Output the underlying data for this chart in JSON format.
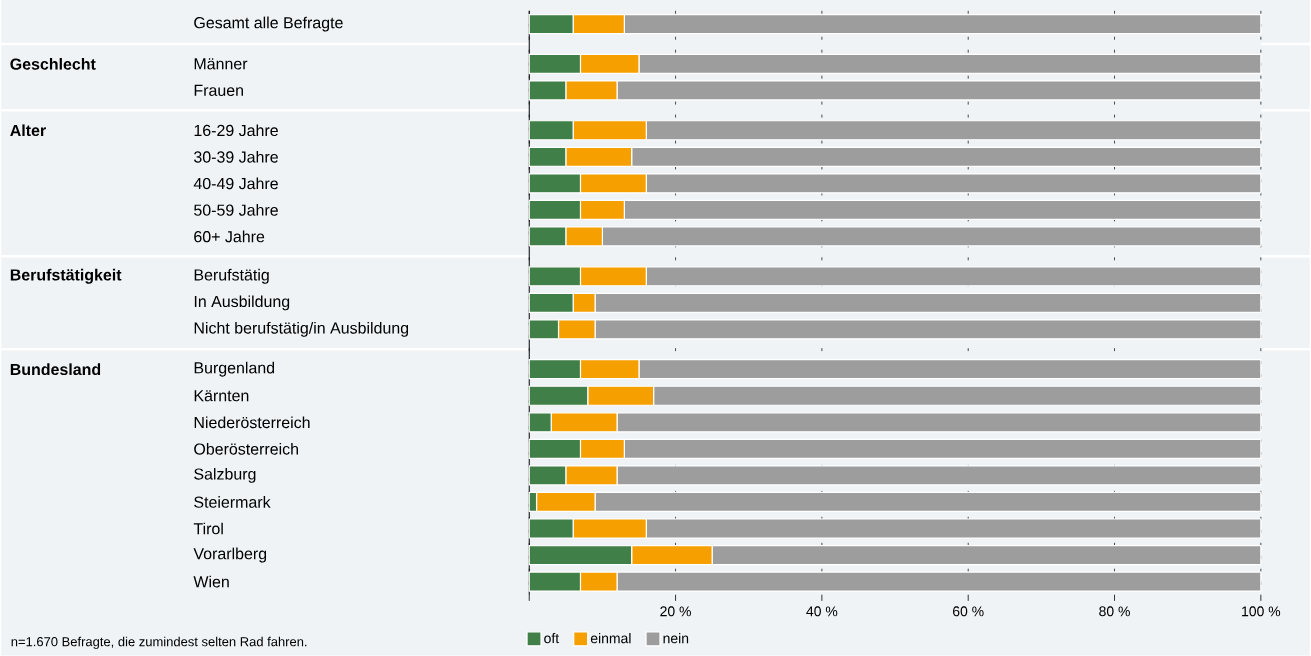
{
  "chart_data": {
    "type": "bar",
    "orientation": "horizontal",
    "stacked": true,
    "categories": [
      "Gesamt alle Befragte",
      "Männer",
      "Frauen",
      "16-29 Jahre",
      "30-39 Jahre",
      "40-49 Jahre",
      "50-59 Jahre",
      "60+ Jahre",
      "Berufstätig",
      "In Ausbildung",
      "Nicht berufstätig/in Ausbildung",
      "Burgenland",
      "Kärnten",
      "Niederösterreich",
      "Oberösterreich",
      "Salzburg",
      "Steiermark",
      "Tirol",
      "Vorarlberg",
      "Wien"
    ],
    "series": [
      {
        "name": "oft",
        "color": "#417f48",
        "values": [
          6,
          7,
          5,
          6,
          5,
          7,
          7,
          5,
          7,
          6,
          4,
          7,
          8,
          3,
          7,
          5,
          1,
          6,
          14,
          7
        ]
      },
      {
        "name": "einmal",
        "color": "#f59f00",
        "values": [
          7,
          8,
          7,
          10,
          9,
          9,
          6,
          5,
          9,
          3,
          5,
          8,
          9,
          9,
          6,
          7,
          8,
          10,
          11,
          5
        ]
      },
      {
        "name": "nein",
        "color": "#9d9d9d",
        "values": [
          87,
          85,
          88,
          84,
          86,
          84,
          87,
          90,
          84,
          91,
          91,
          85,
          83,
          88,
          87,
          88,
          91,
          84,
          75,
          88
        ]
      }
    ],
    "xlim": [
      0,
      100
    ],
    "xticks": [
      {
        "value": 0,
        "label": null
      },
      {
        "value": 20,
        "label": "20 %"
      },
      {
        "value": 40,
        "label": "40 %"
      },
      {
        "value": 60,
        "label": "60 %"
      },
      {
        "value": 80,
        "label": "80 %"
      },
      {
        "value": 100,
        "label": "100 %"
      }
    ],
    "grid": "x",
    "legend": "bottom",
    "annotations": [
      "Geschlecht",
      "Alter",
      "Berufstätigkeit",
      "Bundesland",
      "n=1.670 Befragte, die zumindest selten Rad fahren."
    ]
  }
}
